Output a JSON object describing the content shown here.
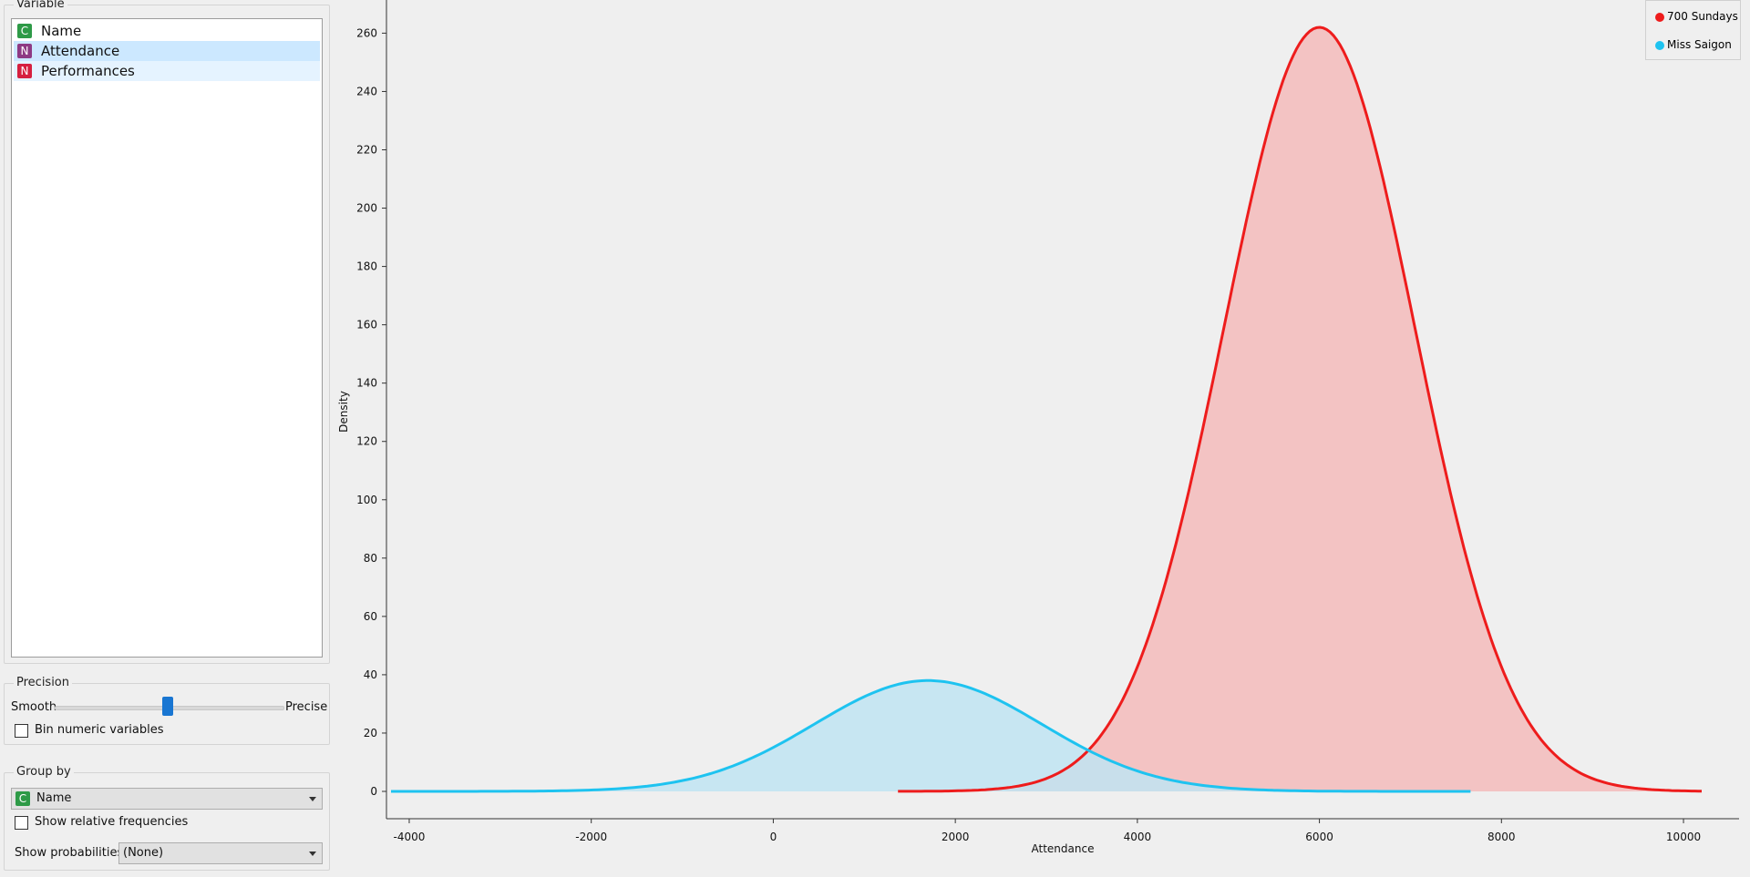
{
  "variable": {
    "title": "Variable",
    "items": [
      {
        "badge": "C",
        "label": "Name"
      },
      {
        "badge": "N",
        "label": "Attendance"
      },
      {
        "badge": "N",
        "label": "Performances"
      }
    ]
  },
  "precision": {
    "title": "Precision",
    "smooth_label": "Smooth",
    "precise_label": "Precise",
    "bin_label": "Bin numeric variables"
  },
  "group_by": {
    "title": "Group by",
    "badge": "C",
    "selected": "Name",
    "relative_freq_label": "Show relative frequencies",
    "show_prob_label": "Show probabilities:",
    "show_prob_value": "(None)"
  },
  "legend": {
    "items": [
      {
        "label": "700 Sundays",
        "color": "#ee1c1c"
      },
      {
        "label": "Miss Saigon",
        "color": "#1ec3f0"
      }
    ]
  },
  "chart_data": {
    "type": "area",
    "xlabel": "Attendance",
    "ylabel": "Density",
    "xlim": [
      -4200,
      10200
    ],
    "ylim": [
      0,
      262
    ],
    "xticks": [
      -4000,
      -2000,
      0,
      2000,
      4000,
      6000,
      8000,
      10000
    ],
    "yticks": [
      0,
      20,
      40,
      60,
      80,
      100,
      120,
      140,
      160,
      180,
      200,
      220,
      240,
      260
    ],
    "series": [
      {
        "name": "700 Sundays",
        "color": "#ee1c1c",
        "fill": "#f2c0c0",
        "mean": 6000,
        "sd": 1050,
        "peak": 262,
        "x_range": [
          1370,
          10200
        ]
      },
      {
        "name": "Miss Saigon",
        "color": "#1ec3f0",
        "fill": "#bfe4f2",
        "mean": 1700,
        "sd": 1250,
        "peak": 38,
        "x_range": [
          -4200,
          7660
        ]
      }
    ]
  }
}
